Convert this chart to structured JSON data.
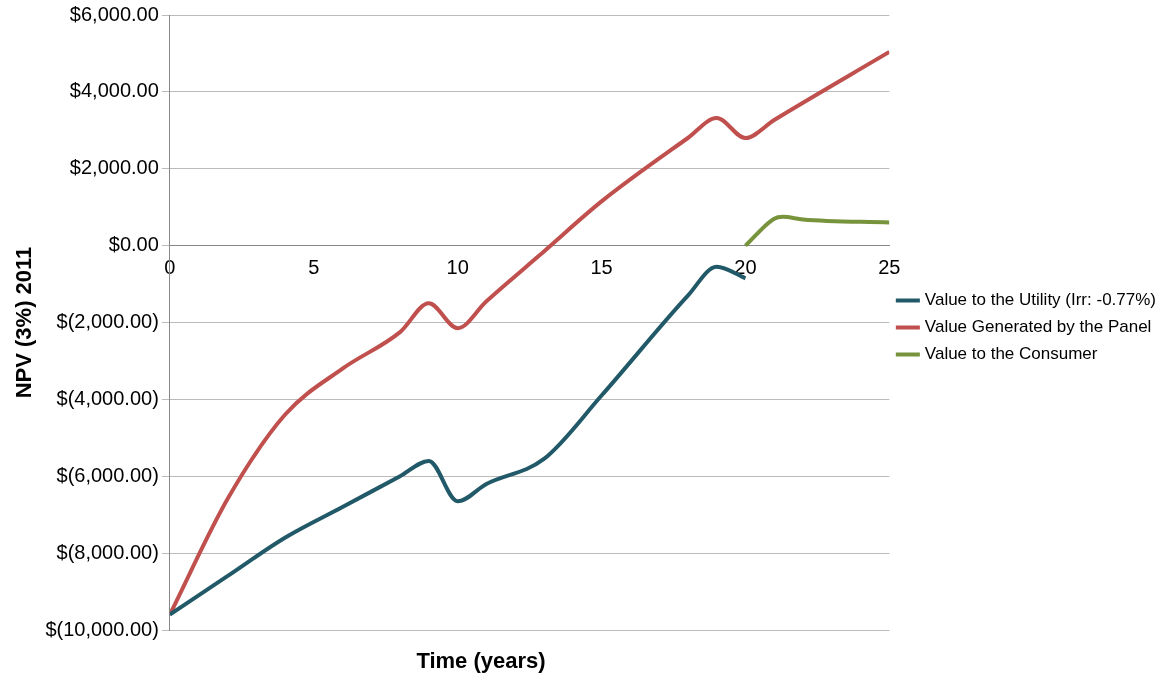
{
  "chart_data": {
    "type": "line",
    "xlabel": "Time (years)",
    "ylabel": "NPV (3%) 2011",
    "xlim": [
      0,
      25
    ],
    "xticks": [
      0,
      5,
      10,
      15,
      20,
      25
    ],
    "ylim": [
      -10000,
      6000
    ],
    "yticks": [
      {
        "value": -10000,
        "label": "$(10,000.00)"
      },
      {
        "value": -8000,
        "label": "$(8,000.00)"
      },
      {
        "value": -6000,
        "label": "$(6,000.00)"
      },
      {
        "value": -4000,
        "label": "$(4,000.00)"
      },
      {
        "value": -2000,
        "label": "$(2,000.00)"
      },
      {
        "value": 0,
        "label": "$0.00"
      },
      {
        "value": 2000,
        "label": "$2,000.00"
      },
      {
        "value": 4000,
        "label": "$4,000.00"
      },
      {
        "value": 6000,
        "label": "$6,000.00"
      }
    ],
    "grid": "y",
    "legend": "right",
    "marker": "none",
    "series": [
      {
        "name": "Value to the Utility (Irr: -0.77%)",
        "color": "#215968",
        "x": [
          0,
          2,
          4,
          6,
          8,
          9,
          10,
          11,
          13,
          15,
          18,
          19,
          20
        ],
        "values": [
          -9600,
          -8600,
          -7600,
          -6800,
          -6000,
          -5600,
          -6650,
          -6200,
          -5550,
          -3900,
          -1300,
          -550,
          -850
        ]
      },
      {
        "name": "Value Generated by the Panel",
        "color": "#c0504d",
        "x": [
          0,
          2,
          4,
          6,
          8,
          9,
          10,
          11,
          13,
          15,
          18,
          19,
          20,
          21,
          25
        ],
        "values": [
          -9600,
          -6600,
          -4400,
          -3200,
          -2250,
          -1500,
          -2150,
          -1450,
          -150,
          1150,
          2800,
          3320,
          2800,
          3270,
          5040
        ]
      },
      {
        "name": "Value to the Consumer",
        "color": "#77933c",
        "x": [
          20,
          21,
          21.3,
          22,
          25
        ],
        "values": [
          0,
          700,
          750,
          680,
          600
        ]
      }
    ]
  }
}
